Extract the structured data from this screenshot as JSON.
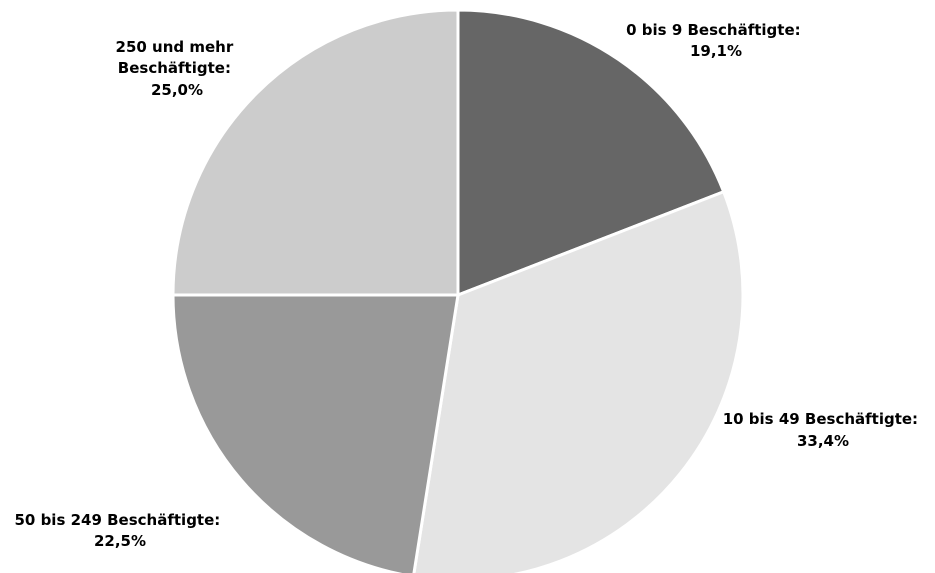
{
  "chart_data": {
    "type": "pie",
    "title": "",
    "slices": [
      {
        "category": "0 bis 9 Beschäftigte:",
        "value_label": "19,1%",
        "value": 19.1,
        "color": "#666666"
      },
      {
        "category": "10 bis 49 Beschäftigte:",
        "value_label": "33,4%",
        "value": 33.4,
        "color": "#e4e4e4"
      },
      {
        "category": "50 bis 249 Beschäftigte:",
        "value_label": "22,5%",
        "value": 22.5,
        "color": "#999999"
      },
      {
        "category": "250 und mehr Beschäftigte:",
        "value_label": "25,0%",
        "value": 25.0,
        "color": "#cccccc"
      }
    ],
    "start_angle": "12 o'clock",
    "direction": "clockwise",
    "legend": "none",
    "slice_border_color": "#ffffff"
  }
}
